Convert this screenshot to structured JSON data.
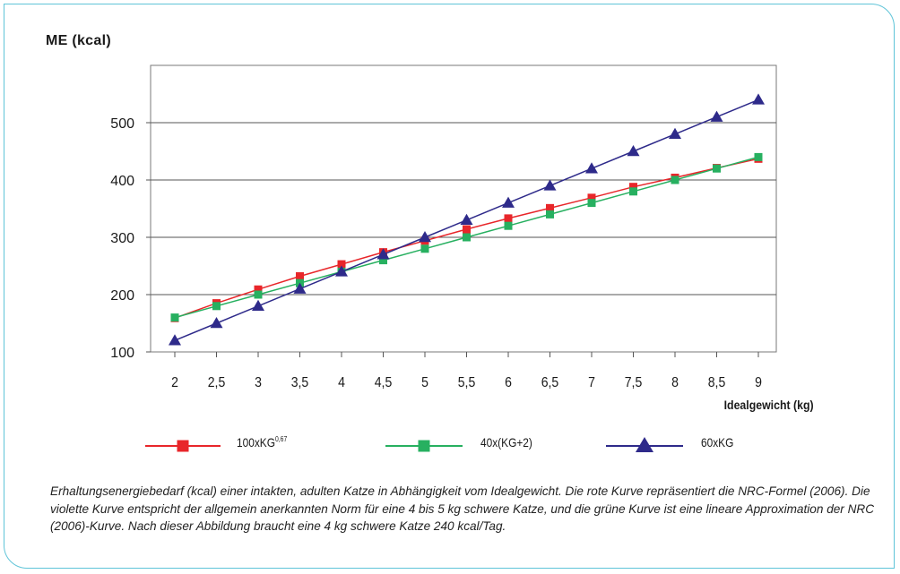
{
  "chart_data": {
    "type": "line",
    "ylabel": "ME (kcal)",
    "xlabel": "Idealgewicht (kg)",
    "x": [
      2,
      2.5,
      3,
      3.5,
      4,
      4.5,
      5,
      5.5,
      6,
      6.5,
      7,
      7.5,
      8,
      8.5,
      9
    ],
    "x_tick_labels": [
      "2",
      "2,5",
      "3",
      "3,5",
      "4",
      "4,5",
      "5",
      "5,5",
      "6",
      "6,5",
      "7",
      "7,5",
      "8",
      "8,5",
      "9"
    ],
    "y_ticks": [
      100,
      200,
      300,
      400,
      500
    ],
    "ylim": [
      100,
      600
    ],
    "grid": true,
    "legend_placement": "bottom",
    "series": [
      {
        "name": "100xKG",
        "name_sup": "0,67",
        "color": "#e8262a",
        "marker": "square",
        "values": [
          159,
          185,
          209,
          232,
          253,
          274,
          294,
          314,
          333,
          351,
          369,
          388,
          404,
          421,
          437
        ]
      },
      {
        "name": "40x(KG+2)",
        "name_sup": "",
        "color": "#27b060",
        "marker": "square",
        "values": [
          160,
          180,
          200,
          220,
          240,
          260,
          280,
          300,
          320,
          340,
          360,
          380,
          400,
          420,
          440
        ]
      },
      {
        "name": "60xKG",
        "name_sup": "",
        "color": "#2e2a8a",
        "marker": "triangle",
        "values": [
          120,
          150,
          180,
          210,
          240,
          270,
          300,
          330,
          360,
          390,
          420,
          450,
          480,
          510,
          540
        ]
      }
    ]
  },
  "caption": "Erhaltungsenergiebedarf (kcal) einer intakten, adulten Katze in Abhängigkeit vom Idealgewicht. Die rote Kurve repräsentiert die NRC-Formel (2006). Die violette Kurve entspricht der allgemein anerkannten Norm für eine 4 bis 5 kg schwere Katze, und die grüne Kurve ist eine lineare Approximation der NRC (2006)-Kurve. Nach dieser Abbildung braucht eine 4 kg schwere Katze 240 kcal/Tag.",
  "colors": {
    "frame": "#5fc4d8"
  }
}
